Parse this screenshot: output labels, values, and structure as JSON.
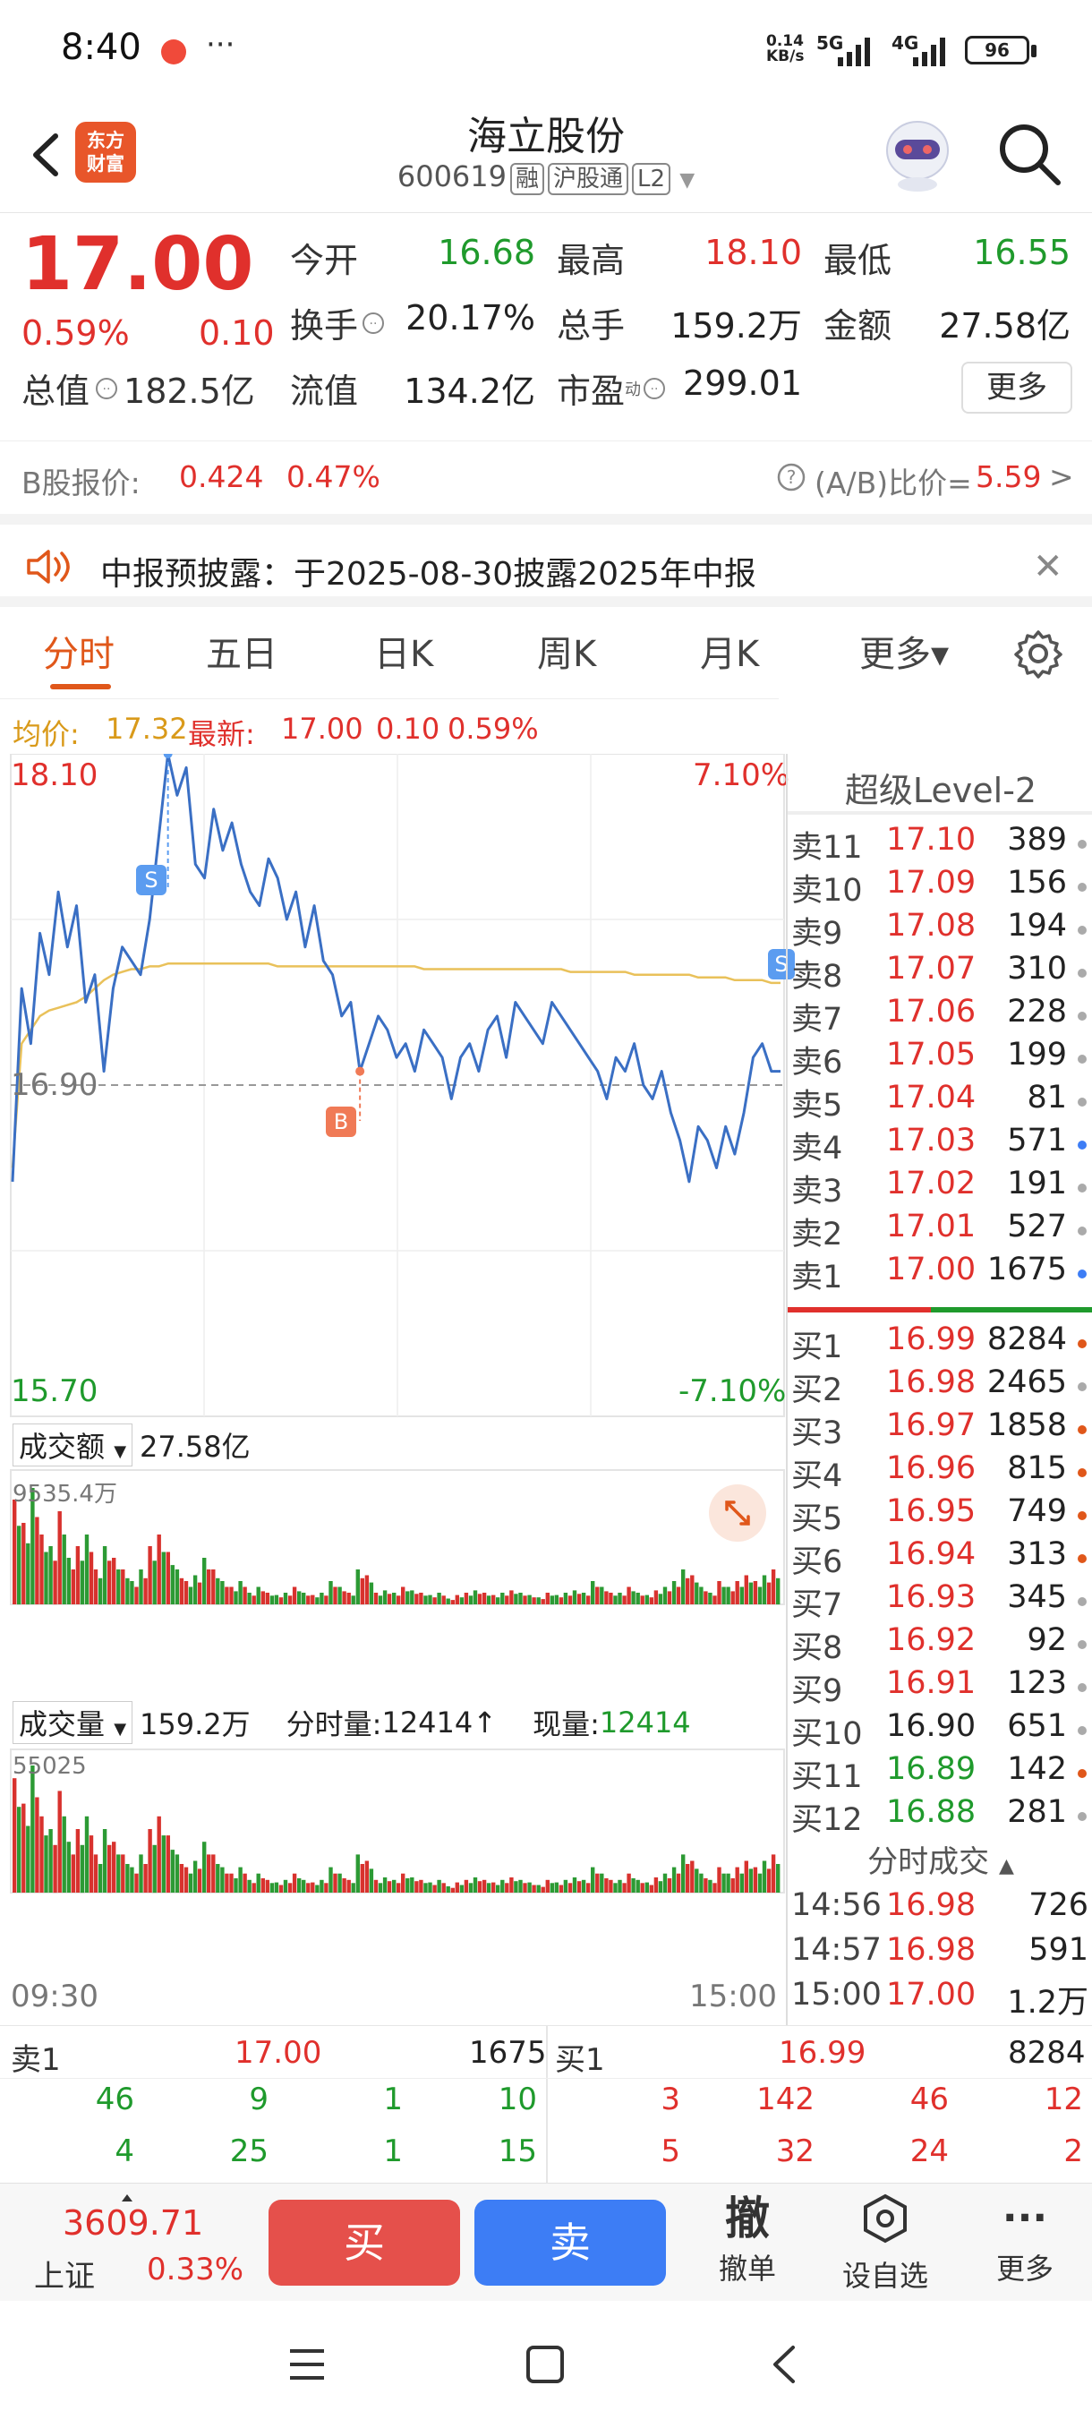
{
  "status": {
    "time": "8:40",
    "dots": "···",
    "net_speed": "0.14",
    "net_unit": "KB/s",
    "signal1": "5G",
    "signal2": "4G",
    "battery": "96"
  },
  "header": {
    "logo_line1": "东方",
    "logo_line2": "财富",
    "title": "海立股份",
    "code": "600619",
    "tags": [
      "融",
      "沪股通",
      "L2"
    ]
  },
  "quote": {
    "price": "17.00",
    "pct": "0.59%",
    "chg": "0.10",
    "fields": [
      {
        "label": "今开",
        "value": "16.68",
        "color": "green"
      },
      {
        "label": "最高",
        "value": "18.10",
        "color": "red"
      },
      {
        "label": "最低",
        "value": "16.55",
        "color": "green"
      },
      {
        "label": "换手",
        "value": "20.17%",
        "color": "black"
      },
      {
        "label": "总手",
        "value": "159.2万",
        "color": "black"
      },
      {
        "label": "金额",
        "value": "27.58亿",
        "color": "black"
      },
      {
        "label": "总值",
        "value": "182.5亿",
        "color": "black"
      },
      {
        "label": "流值",
        "value": "134.2亿",
        "color": "black"
      },
      {
        "label": "市盈",
        "value": "299.01",
        "color": "black"
      }
    ],
    "pe_sup": "动",
    "more": "更多"
  },
  "bshare": {
    "label": "B股报价:",
    "price": "0.424",
    "pct": "0.47%",
    "ratio_label": "(A/B)比价=",
    "ratio": "5.59",
    "arrow": ">"
  },
  "notice": {
    "text": "中报预披露：于2025-08-30披露2025年中报"
  },
  "tabs": [
    {
      "label": "分时",
      "active": true
    },
    {
      "label": "五日",
      "active": false
    },
    {
      "label": "日K",
      "active": false
    },
    {
      "label": "周K",
      "active": false
    },
    {
      "label": "月K",
      "active": false
    },
    {
      "label": "更多▾",
      "active": false
    }
  ],
  "avgline": {
    "avg_label": "均价:",
    "avg": "17.32",
    "last_label": "最新:",
    "last": "17.00",
    "chg": "0.10",
    "pct": "0.59%"
  },
  "chart": {
    "max": "18.10",
    "min": "15.70",
    "max_pct": "7.10%",
    "min_pct": "-7.10%",
    "prev_close": "16.90",
    "amount_label": "成交额",
    "amount": "27.58亿",
    "amount_max": "9535.4万",
    "volume_label": "成交量",
    "volume": "159.2万",
    "tick_label": "分时量:",
    "tick": "12414↑",
    "now_label": "现量:",
    "now": "12414",
    "volume_max": "55025",
    "time_start": "09:30",
    "time_end": "15:00",
    "marker_s": "S",
    "marker_b": "B"
  },
  "orderbook": {
    "title": "超级Level-2",
    "asks": [
      {
        "label": "卖11",
        "price": "17.10",
        "vol": "389",
        "dot": "#aaaaaa"
      },
      {
        "label": "卖10",
        "price": "17.09",
        "vol": "156",
        "dot": "#aaaaaa"
      },
      {
        "label": "卖9",
        "price": "17.08",
        "vol": "194",
        "dot": "#aaaaaa"
      },
      {
        "label": "卖8",
        "price": "17.07",
        "vol": "310",
        "dot": "#aaaaaa"
      },
      {
        "label": "卖7",
        "price": "17.06",
        "vol": "228",
        "dot": "#aaaaaa"
      },
      {
        "label": "卖6",
        "price": "17.05",
        "vol": "199",
        "dot": "#aaaaaa"
      },
      {
        "label": "卖5",
        "price": "17.04",
        "vol": "81",
        "dot": "#aaaaaa"
      },
      {
        "label": "卖4",
        "price": "17.03",
        "vol": "571",
        "dot": "#3d7df5"
      },
      {
        "label": "卖3",
        "price": "17.02",
        "vol": "191",
        "dot": "#aaaaaa"
      },
      {
        "label": "卖2",
        "price": "17.01",
        "vol": "527",
        "dot": "#aaaaaa"
      },
      {
        "label": "卖1",
        "price": "17.00",
        "vol": "1675",
        "dot": "#3d7df5"
      }
    ],
    "bids": [
      {
        "label": "买1",
        "price": "16.99",
        "vol": "8284",
        "dot": "#e0571a"
      },
      {
        "label": "买2",
        "price": "16.98",
        "vol": "2465",
        "dot": "#aaaaaa"
      },
      {
        "label": "买3",
        "price": "16.97",
        "vol": "1858",
        "dot": "#e0571a"
      },
      {
        "label": "买4",
        "price": "16.96",
        "vol": "815",
        "dot": "#e0571a"
      },
      {
        "label": "买5",
        "price": "16.95",
        "vol": "749",
        "dot": "#e0571a"
      },
      {
        "label": "买6",
        "price": "16.94",
        "vol": "313",
        "dot": "#e0571a"
      },
      {
        "label": "买7",
        "price": "16.93",
        "vol": "345",
        "dot": "#aaaaaa"
      },
      {
        "label": "买8",
        "price": "16.92",
        "vol": "92",
        "dot": "#aaaaaa"
      },
      {
        "label": "买9",
        "price": "16.91",
        "vol": "123",
        "dot": "#aaaaaa"
      },
      {
        "label": "买10",
        "price": "16.90",
        "vol": "651",
        "dot": "#aaaaaa"
      },
      {
        "label": "买11",
        "price": "16.89",
        "vol": "142",
        "dot": "#e0571a"
      },
      {
        "label": "买12",
        "price": "16.88",
        "vol": "281",
        "dot": "#aaaaaa"
      }
    ],
    "trades_title": "分时成交",
    "trades": [
      {
        "time": "14:56",
        "price": "16.98",
        "vol": "726"
      },
      {
        "time": "14:57",
        "price": "16.98",
        "vol": "591"
      },
      {
        "time": "15:00",
        "price": "17.00",
        "vol": "1.2万"
      }
    ]
  },
  "summary": {
    "ask_label": "卖1",
    "ask_price": "17.00",
    "ask_vol": "1675",
    "bid_label": "买1",
    "bid_price": "16.99",
    "bid_vol": "8284",
    "ask_row1": [
      "46",
      "9",
      "1",
      "10"
    ],
    "ask_row2": [
      "4",
      "25",
      "1",
      "15"
    ],
    "bid_row1": [
      "3",
      "142",
      "46",
      "12"
    ],
    "bid_row2": [
      "5",
      "32",
      "24",
      "2"
    ]
  },
  "actions": {
    "index_value": "3609.71",
    "index_name": "上证",
    "index_pct": "0.33%",
    "buy": "买",
    "sell": "卖",
    "cancel_icon": "撤",
    "cancel": "撤单",
    "watch": "设自选",
    "more": "更多"
  },
  "chart_data": {
    "type": "line",
    "prev_close": 16.9,
    "ylim": [
      15.7,
      18.1
    ],
    "price_series": [
      16.55,
      17.25,
      17.05,
      17.45,
      17.3,
      17.6,
      17.4,
      17.55,
      17.2,
      17.3,
      16.95,
      17.25,
      17.4,
      17.35,
      17.3,
      17.5,
      17.8,
      18.1,
      17.95,
      18.05,
      17.7,
      17.65,
      17.9,
      17.75,
      17.85,
      17.7,
      17.6,
      17.55,
      17.72,
      17.65,
      17.5,
      17.6,
      17.4,
      17.55,
      17.35,
      17.3,
      17.15,
      17.2,
      16.95,
      17.05,
      17.15,
      17.1,
      17.0,
      17.05,
      16.95,
      17.1,
      17.05,
      17.0,
      16.85,
      17.0,
      17.05,
      16.95,
      17.1,
      17.15,
      17.0,
      17.2,
      17.15,
      17.1,
      17.05,
      17.2,
      17.15,
      17.1,
      17.05,
      17.0,
      16.95,
      16.85,
      17.0,
      16.95,
      17.05,
      16.9,
      16.85,
      16.95,
      16.8,
      16.7,
      16.55,
      16.75,
      16.7,
      16.6,
      16.75,
      16.65,
      16.8,
      17.0,
      17.05,
      16.95,
      16.95
    ],
    "avg_series": [
      16.6,
      17.05,
      17.1,
      17.15,
      17.17,
      17.18,
      17.19,
      17.2,
      17.22,
      17.25,
      17.28,
      17.3,
      17.31,
      17.32,
      17.32,
      17.33,
      17.33,
      17.34,
      17.34,
      17.34,
      17.34,
      17.34,
      17.34,
      17.34,
      17.34,
      17.34,
      17.34,
      17.34,
      17.34,
      17.33,
      17.33,
      17.33,
      17.33,
      17.33,
      17.33,
      17.33,
      17.33,
      17.33,
      17.33,
      17.33,
      17.33,
      17.33,
      17.33,
      17.33,
      17.33,
      17.32,
      17.32,
      17.32,
      17.32,
      17.32,
      17.32,
      17.32,
      17.32,
      17.32,
      17.32,
      17.32,
      17.32,
      17.32,
      17.32,
      17.32,
      17.32,
      17.31,
      17.31,
      17.31,
      17.31,
      17.31,
      17.31,
      17.31,
      17.3,
      17.3,
      17.3,
      17.3,
      17.3,
      17.3,
      17.3,
      17.29,
      17.29,
      17.29,
      17.29,
      17.28,
      17.28,
      17.28,
      17.28,
      17.27,
      17.27
    ],
    "amount_bars": [
      0.9,
      0.7,
      1.0,
      0.6,
      0.5,
      0.8,
      0.4,
      0.5,
      0.6,
      0.3,
      0.5,
      0.4,
      0.3,
      0.2,
      0.3,
      0.5,
      0.6,
      0.45,
      0.3,
      0.2,
      0.25,
      0.4,
      0.3,
      0.2,
      0.15,
      0.2,
      0.1,
      0.15,
      0.1,
      0.08,
      0.1,
      0.15,
      0.1,
      0.08,
      0.1,
      0.2,
      0.15,
      0.1,
      0.3,
      0.25,
      0.1,
      0.12,
      0.1,
      0.15,
      0.12,
      0.1,
      0.08,
      0.1,
      0.05,
      0.08,
      0.1,
      0.12,
      0.1,
      0.08,
      0.1,
      0.12,
      0.1,
      0.08,
      0.06,
      0.1,
      0.08,
      0.1,
      0.12,
      0.1,
      0.2,
      0.15,
      0.1,
      0.1,
      0.15,
      0.1,
      0.08,
      0.12,
      0.15,
      0.2,
      0.3,
      0.25,
      0.15,
      0.1,
      0.2,
      0.15,
      0.2,
      0.25,
      0.2,
      0.25,
      0.3
    ],
    "volume_bars": [
      0.9,
      0.7,
      1.0,
      0.6,
      0.5,
      0.8,
      0.4,
      0.5,
      0.6,
      0.3,
      0.5,
      0.4,
      0.3,
      0.2,
      0.3,
      0.5,
      0.6,
      0.45,
      0.3,
      0.2,
      0.25,
      0.4,
      0.3,
      0.2,
      0.15,
      0.2,
      0.1,
      0.15,
      0.1,
      0.08,
      0.1,
      0.15,
      0.1,
      0.08,
      0.1,
      0.2,
      0.15,
      0.1,
      0.3,
      0.25,
      0.1,
      0.12,
      0.1,
      0.15,
      0.12,
      0.1,
      0.08,
      0.1,
      0.05,
      0.08,
      0.1,
      0.12,
      0.1,
      0.08,
      0.1,
      0.12,
      0.1,
      0.08,
      0.06,
      0.1,
      0.08,
      0.1,
      0.12,
      0.1,
      0.2,
      0.15,
      0.1,
      0.1,
      0.15,
      0.1,
      0.08,
      0.12,
      0.15,
      0.2,
      0.3,
      0.25,
      0.15,
      0.1,
      0.2,
      0.15,
      0.2,
      0.25,
      0.2,
      0.25,
      0.3
    ],
    "x_ticks": [
      "09:30",
      "15:00"
    ]
  }
}
